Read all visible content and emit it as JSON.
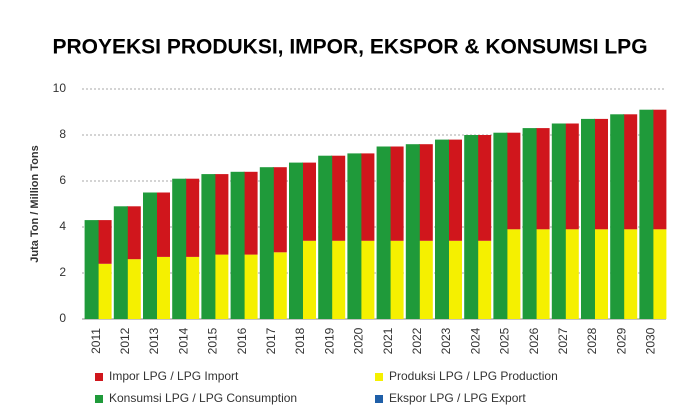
{
  "chart_data": {
    "type": "bar",
    "title": "PROYEKSI PRODUKSI, IMPOR, EKSPOR & KONSUMSI LPG",
    "y_label": "Juta Ton / Million Tons",
    "categories": [
      "2011",
      "2012",
      "2013",
      "2014",
      "2015",
      "2016",
      "2017",
      "2018",
      "2019",
      "2020",
      "2021",
      "2022",
      "2023",
      "2024",
      "2025",
      "2026",
      "2027",
      "2028",
      "2029",
      "2030"
    ],
    "series": [
      {
        "name": "Impor LPG / LPG Import",
        "color": "#d0161c",
        "stack": "supply",
        "values": [
          1.9,
          2.3,
          2.8,
          3.4,
          3.5,
          3.6,
          3.7,
          3.4,
          3.7,
          3.8,
          4.1,
          4.2,
          4.4,
          4.6,
          4.2,
          4.4,
          4.6,
          4.8,
          5.0,
          5.2
        ]
      },
      {
        "name": "Produksi LPG / LPG Production",
        "color": "#f5f000",
        "stack": "supply",
        "values": [
          2.4,
          2.6,
          2.7,
          2.7,
          2.8,
          2.8,
          2.9,
          3.4,
          3.4,
          3.4,
          3.4,
          3.4,
          3.4,
          3.4,
          3.9,
          3.9,
          3.9,
          3.9,
          3.9,
          3.9
        ]
      },
      {
        "name": "Konsumsi LPG / LPG Consumption",
        "color": "#1f9a3a",
        "stack": "demand",
        "values": [
          4.3,
          4.9,
          5.5,
          6.1,
          6.3,
          6.4,
          6.6,
          6.8,
          7.1,
          7.2,
          7.5,
          7.6,
          7.8,
          8.0,
          8.1,
          8.3,
          8.5,
          8.7,
          8.9,
          9.1
        ]
      },
      {
        "name": "Ekspor LPG / LPG Export",
        "color": "#1f5fa8",
        "stack": "export",
        "values": [
          0,
          0,
          0,
          0,
          0,
          0,
          0,
          0,
          0,
          0,
          0,
          0,
          0,
          0,
          0,
          0,
          0,
          0,
          0,
          0
        ]
      }
    ],
    "ylim": [
      0,
      10
    ],
    "yticks": [
      0,
      2,
      4,
      6,
      8,
      10
    ],
    "grid": true
  }
}
